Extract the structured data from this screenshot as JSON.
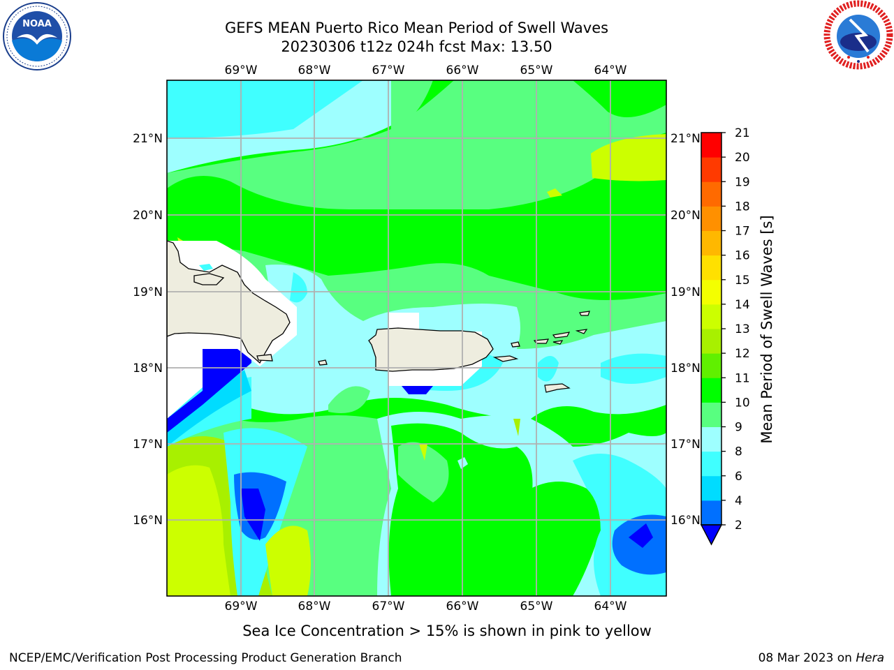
{
  "title_line1": "GEFS MEAN Puerto Rico Mean Period of Swell Waves",
  "title_line2": "20230306 t12z 024h fcst   Max: 13.50",
  "lon_labels": [
    "69°W",
    "68°W",
    "67°W",
    "66°W",
    "65°W",
    "64°W"
  ],
  "lat_labels": [
    "21°N",
    "20°N",
    "19°N",
    "18°N",
    "17°N",
    "16°N"
  ],
  "colorbar": {
    "label": "Mean Period of Swell Waves [s]",
    "ticks": [
      "2",
      "4",
      "6",
      "8",
      "9",
      "10",
      "11",
      "12",
      "13",
      "14",
      "15",
      "16",
      "17",
      "18",
      "19",
      "20",
      "21"
    ],
    "colors": [
      "#0070ff",
      "#00dcff",
      "#40ffff",
      "#9effff",
      "#58ff80",
      "#00ff00",
      "#60f000",
      "#a8f000",
      "#ccff00",
      "#f4ff00",
      "#ffe000",
      "#ffb800",
      "#ff9000",
      "#ff6a00",
      "#ff3a00",
      "#ff0000"
    ],
    "under_color": "#0000ff"
  },
  "land_color": "#eeeddf",
  "caption": "Sea Ice Concentration > 15% is shown in pink to yellow",
  "footer_left": "NCEP/EMC/Verification Post Processing Product Generation Branch",
  "footer_date": "08 Mar 2023 on ",
  "footer_host": "Hera"
}
